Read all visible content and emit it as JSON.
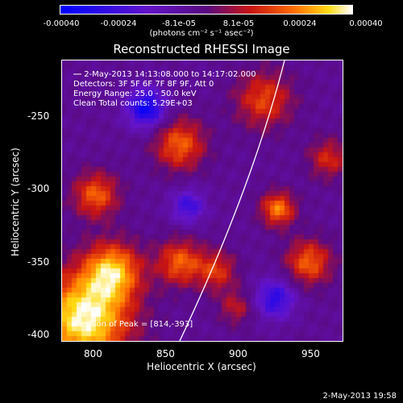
{
  "colorbar": {
    "tick_labels": [
      "-0.00040",
      "-0.00024",
      "-8.1e-05",
      "8.1e-05",
      "0.00024",
      "0.00040"
    ],
    "unit": "(photons cm⁻² s⁻¹ asec⁻²)",
    "range": [
      -0.0004,
      0.0004
    ]
  },
  "title": "Reconstructed RHESSI Image",
  "annotations": {
    "time": "2-May-2013 14:13:08.000 to 14:17:02.000",
    "detectors": "Detectors: 3F 5F 6F 7F 8F 9F, Att 0",
    "energy": "Energy Range: 25.0 - 50.0 keV",
    "clean": "Clean     Total counts: 5.29E+03",
    "peak": "Position of Peak = [814,-393]"
  },
  "axes": {
    "x_label": "Heliocentric X (arcsec)",
    "y_label": "Heliocentric Y (arcsec)",
    "x_ticks": [
      "800",
      "850",
      "900",
      "950"
    ],
    "y_ticks": [
      "-250",
      "-300",
      "-350",
      "-400"
    ],
    "x_range": [
      778,
      970
    ],
    "y_range": [
      -406,
      -215
    ]
  },
  "timestamp": "2-May-2013 19:58"
}
